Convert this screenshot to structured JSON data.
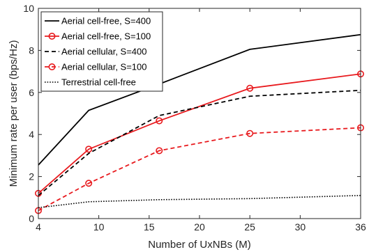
{
  "chart_data": {
    "type": "line",
    "title": "",
    "xlabel": "Number of UxNBs (M)",
    "ylabel": "Minimum rate per user (bps/Hz)",
    "xlim": [
      4,
      36
    ],
    "ylim": [
      0,
      10
    ],
    "xticks": [
      4,
      10,
      15,
      20,
      25,
      30,
      36
    ],
    "yticks": [
      0,
      2,
      4,
      6,
      8,
      10
    ],
    "grid": false,
    "legend_position": "top-left",
    "x": [
      4,
      9,
      16,
      25,
      36
    ],
    "series": [
      {
        "name": "Aerial cell-free, S=400",
        "color": "#000000",
        "dash": "solid",
        "marker": "none",
        "values": [
          2.55,
          5.15,
          6.4,
          8.05,
          8.75
        ]
      },
      {
        "name": "Aerial cell-free, S=100",
        "color": "#e8191d",
        "dash": "solid",
        "marker": "circle",
        "values": [
          1.2,
          3.3,
          4.65,
          6.2,
          6.88
        ]
      },
      {
        "name": "Aerial cellular, S=400",
        "color": "#000000",
        "dash": "dashed",
        "marker": "none",
        "values": [
          1.1,
          3.1,
          4.9,
          5.82,
          6.1
        ]
      },
      {
        "name": "Aerial cellular, S=100",
        "color": "#e8191d",
        "dash": "dashed",
        "marker": "circle",
        "values": [
          0.38,
          1.68,
          3.23,
          4.05,
          4.32
        ]
      },
      {
        "name": "Terrestrial cell-free",
        "color": "#000000",
        "dash": "dotted",
        "marker": "none",
        "values": [
          0.52,
          0.8,
          0.9,
          0.95,
          1.1
        ]
      }
    ]
  }
}
